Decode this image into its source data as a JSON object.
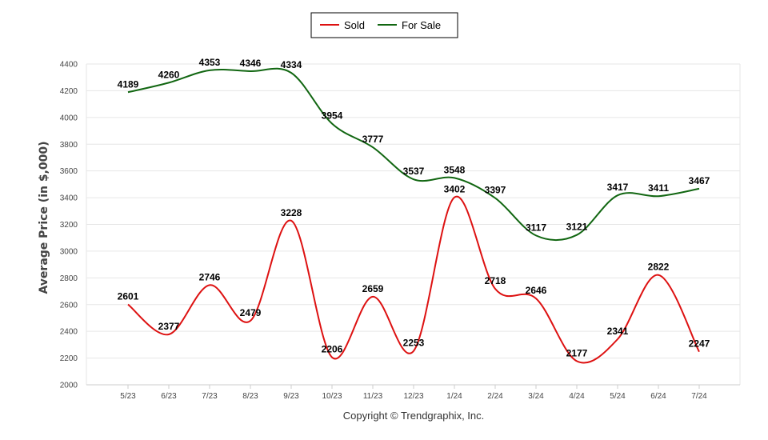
{
  "chart_data": {
    "type": "line",
    "categories": [
      "5/23",
      "6/23",
      "7/23",
      "8/23",
      "9/23",
      "10/23",
      "11/23",
      "12/23",
      "1/24",
      "2/24",
      "3/24",
      "4/24",
      "5/24",
      "6/24",
      "7/24"
    ],
    "series": [
      {
        "name": "Sold",
        "color": "#dd1111",
        "values": [
          2601,
          2377,
          2746,
          2479,
          3228,
          2206,
          2659,
          2253,
          3402,
          2718,
          2646,
          2177,
          2341,
          2822,
          2247
        ]
      },
      {
        "name": "For Sale",
        "color": "#116611",
        "values": [
          4189,
          4260,
          4353,
          4346,
          4334,
          3954,
          3777,
          3537,
          3548,
          3397,
          3117,
          3121,
          3417,
          3411,
          3467
        ]
      }
    ],
    "ylabel": "Average Price (in $,000)",
    "xlabel": "",
    "ylim": [
      2000,
      4400
    ],
    "yticks": [
      2000,
      2200,
      2400,
      2600,
      2800,
      3000,
      3200,
      3400,
      3600,
      3800,
      4000,
      4200,
      4400
    ],
    "grid": true,
    "legend_position": "top-center"
  },
  "footer": {
    "copyright": "Copyright © Trendgraphix, Inc."
  }
}
